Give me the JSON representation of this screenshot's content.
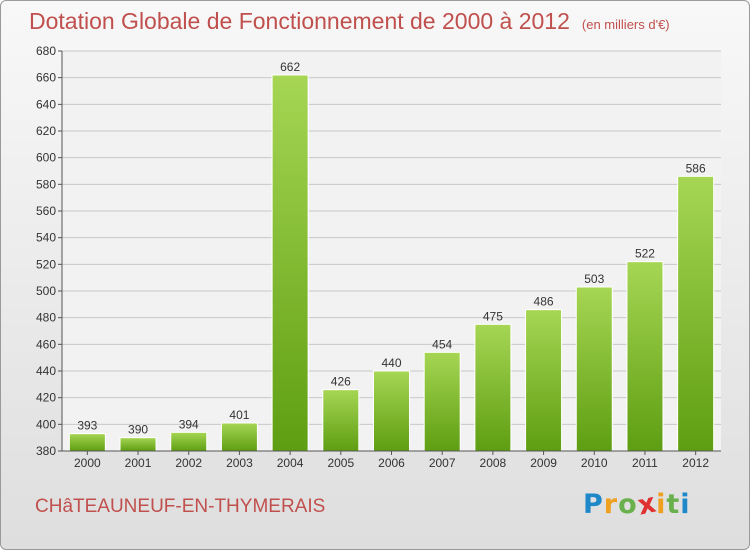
{
  "header": {
    "title": "Dotation Globale de Fonctionnement de 2000 à 2012",
    "subtitle": "(en milliers d'€)"
  },
  "footer": {
    "commune": "CHâTEAUNEUF-EN-THYMERAIS",
    "logo": {
      "letters": [
        "P",
        "r",
        "o",
        "x",
        "i",
        "t",
        "i"
      ],
      "colors": [
        "#1e88c8",
        "#f0a020",
        "#6ab04c",
        "#e03030",
        "#f0a020",
        "#6ab04c",
        "#1e88c8"
      ]
    }
  },
  "colors": {
    "bar_light": "#a6d654",
    "bar_dark": "#5e9e12",
    "title": "#c0504d"
  },
  "chart_data": {
    "type": "bar",
    "categories": [
      "2000",
      "2001",
      "2002",
      "2003",
      "2004",
      "2005",
      "2006",
      "2007",
      "2008",
      "2009",
      "2010",
      "2011",
      "2012"
    ],
    "values": [
      393,
      390,
      394,
      401,
      662,
      426,
      440,
      454,
      475,
      486,
      503,
      522,
      586
    ],
    "ylim": [
      380,
      680
    ],
    "yticks": [
      380,
      400,
      420,
      440,
      460,
      480,
      500,
      520,
      540,
      560,
      580,
      600,
      620,
      640,
      660,
      680
    ],
    "grid": true,
    "data_labels": true
  }
}
